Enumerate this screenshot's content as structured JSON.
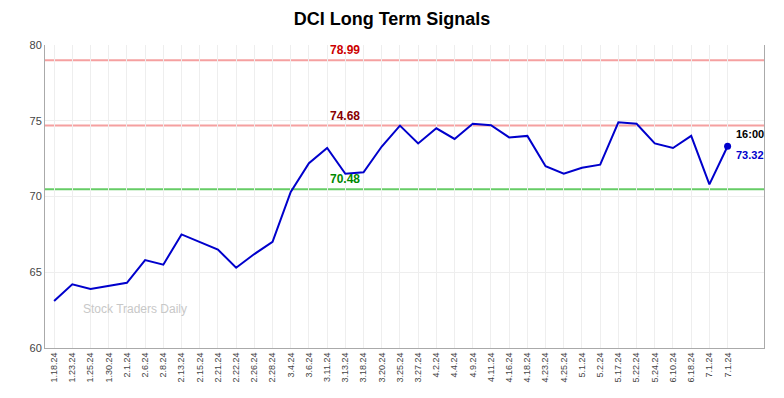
{
  "chart_data": {
    "type": "line",
    "title": "DCI Long Term Signals",
    "categories": [
      "1.18.24",
      "1.23.24",
      "1.25.24",
      "1.30.24",
      "2.1.24",
      "2.6.24",
      "2.8.24",
      "2.13.24",
      "2.15.24",
      "2.21.24",
      "2.22.24",
      "2.26.24",
      "2.28.24",
      "3.4.24",
      "3.6.24",
      "3.11.24",
      "3.13.24",
      "3.18.24",
      "3.20.24",
      "3.25.24",
      "3.27.24",
      "4.2.24",
      "4.4.24",
      "4.9.24",
      "4.11.24",
      "4.16.24",
      "4.18.24",
      "4.23.24",
      "4.25.24",
      "5.1.24",
      "5.2.24",
      "5.17.24",
      "5.22.24",
      "5.24.24",
      "6.10.24",
      "6.18.24",
      "7.1.24",
      "7.1.24"
    ],
    "values": [
      63.1,
      64.2,
      63.9,
      64.1,
      64.3,
      65.8,
      65.5,
      67.5,
      67.0,
      66.5,
      65.3,
      66.2,
      67.0,
      70.3,
      72.2,
      73.2,
      71.5,
      71.6,
      73.3,
      74.68,
      73.5,
      74.5,
      73.8,
      74.8,
      74.7,
      73.9,
      74.0,
      72.0,
      71.5,
      71.9,
      72.1,
      74.9,
      74.8,
      73.5,
      73.2,
      74.0,
      70.8,
      73.32
    ],
    "color": "#0000cc",
    "marker": "circle",
    "ylim": [
      60,
      80
    ],
    "yticks": [
      60,
      65,
      70,
      75,
      80
    ],
    "grid": true,
    "hlines": [
      {
        "value": 78.99,
        "color": "#f5a0a0",
        "label_color": "#cc0000"
      },
      {
        "value": 74.68,
        "color": "#f5a0a0",
        "label_color": "#880000"
      },
      {
        "value": 70.48,
        "color": "#66cc66",
        "label_color": "#008800"
      }
    ],
    "last_time": "16:00",
    "watermark": "Stock Traders Daily",
    "watermark_color": "#c8c8c8"
  }
}
